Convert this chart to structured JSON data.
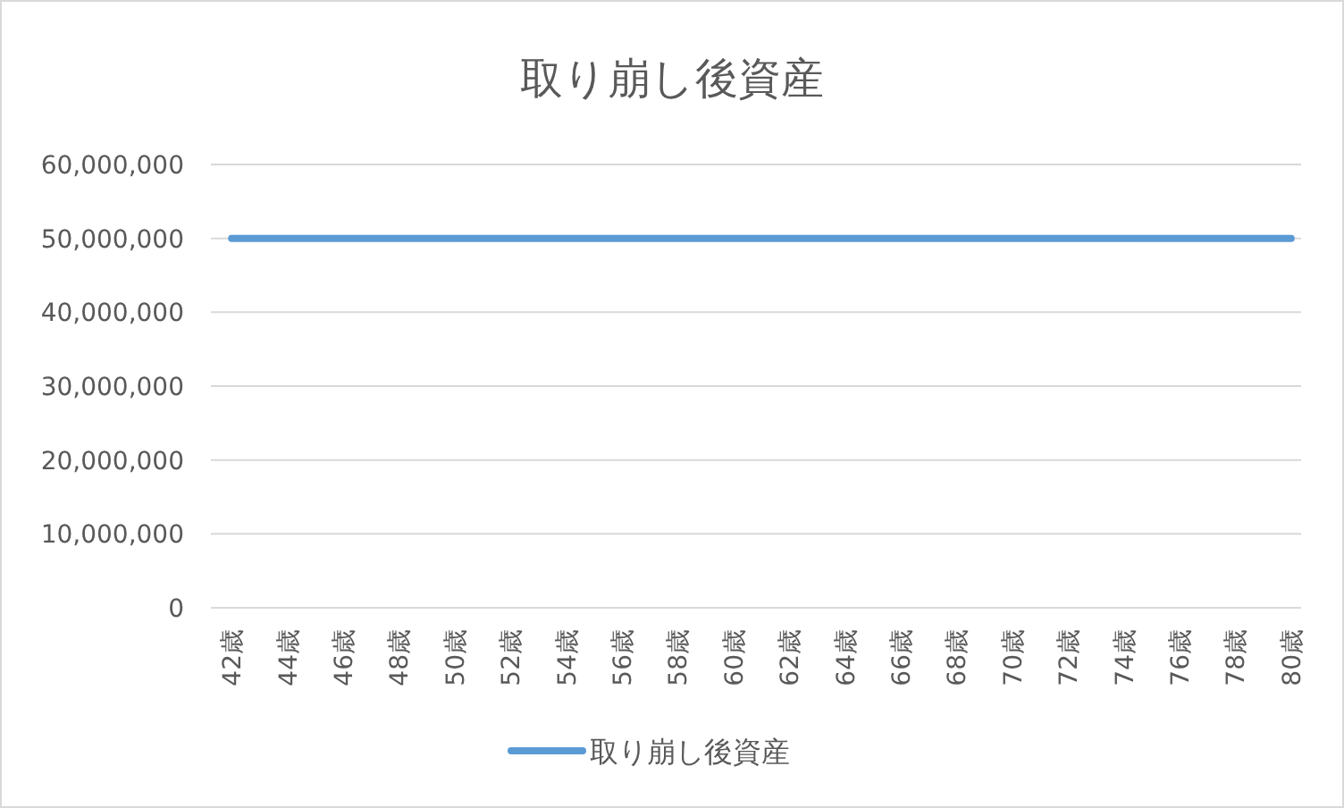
{
  "chart_data": {
    "type": "line",
    "title": "取り崩し後資産",
    "categories": [
      "42歳",
      "44歳",
      "46歳",
      "48歳",
      "50歳",
      "52歳",
      "54歳",
      "56歳",
      "58歳",
      "60歳",
      "62歳",
      "64歳",
      "66歳",
      "68歳",
      "70歳",
      "72歳",
      "74歳",
      "76歳",
      "78歳",
      "80歳"
    ],
    "series": [
      {
        "name": "取り崩し後資産",
        "color": "#5b9bd5",
        "values": [
          50000000,
          50000000,
          50000000,
          50000000,
          50000000,
          50000000,
          50000000,
          50000000,
          50000000,
          50000000,
          50000000,
          50000000,
          50000000,
          50000000,
          50000000,
          50000000,
          50000000,
          50000000,
          50000000,
          50000000
        ]
      }
    ],
    "ylim": [
      0,
      60000000
    ],
    "yticks": [
      {
        "value": 0,
        "label": "0"
      },
      {
        "value": 10000000,
        "label": "10,000,000"
      },
      {
        "value": 20000000,
        "label": "20,000,000"
      },
      {
        "value": 30000000,
        "label": "30,000,000"
      },
      {
        "value": 40000000,
        "label": "40,000,000"
      },
      {
        "value": 50000000,
        "label": "50,000,000"
      },
      {
        "value": 60000000,
        "label": "60,000,000"
      }
    ],
    "grid": "y",
    "legend": "bottom",
    "marker": "none",
    "line_style": "solid"
  }
}
